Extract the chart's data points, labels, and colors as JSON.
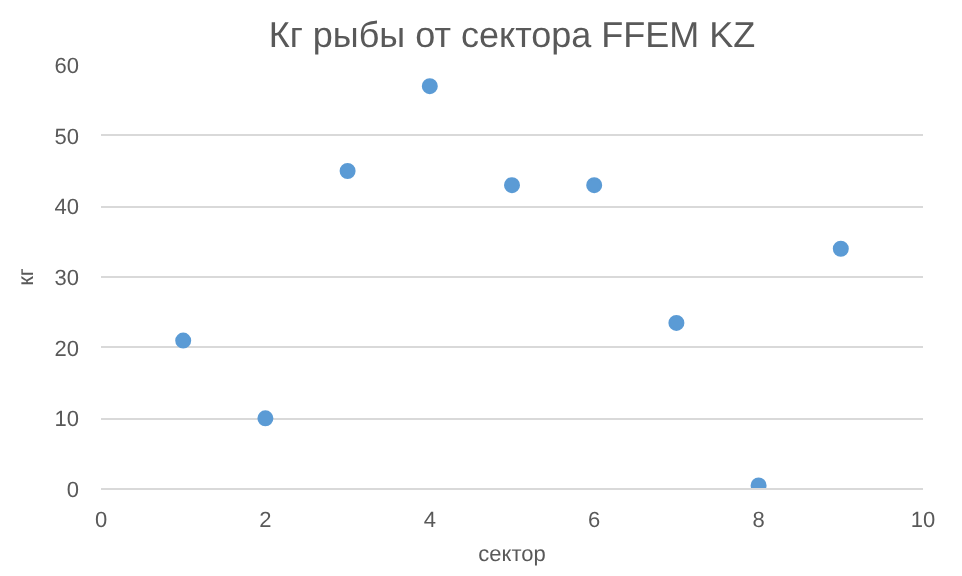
{
  "chart_data": {
    "type": "scatter",
    "title": "Кг рыбы от сектора FFEM KZ",
    "xlabel": "сектор",
    "ylabel": "кг",
    "x": [
      1,
      2,
      3,
      4,
      5,
      6,
      7,
      8,
      9
    ],
    "series": [
      {
        "color": "#5b9bd5",
        "values": [
          21,
          10,
          45,
          57,
          43,
          43,
          23.5,
          0.5,
          34
        ]
      }
    ],
    "xlim": [
      0,
      10
    ],
    "xticks": [
      0,
      2,
      4,
      6,
      8,
      10
    ],
    "ylim": [
      0,
      60
    ],
    "yticks": [
      0,
      10,
      20,
      30,
      40,
      50,
      60
    ],
    "grid": "y",
    "marker": "circle"
  }
}
